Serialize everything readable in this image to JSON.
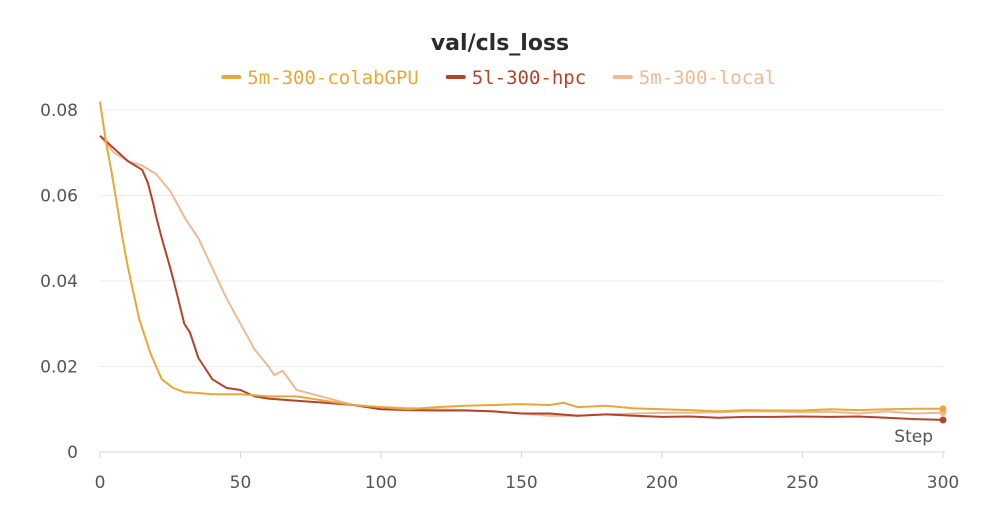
{
  "chart_data": {
    "type": "line",
    "title": "val/cls_loss",
    "xlabel": "Step",
    "ylabel": "",
    "xlim": [
      0,
      300
    ],
    "ylim": [
      0,
      0.08
    ],
    "xticks": [
      0,
      50,
      100,
      150,
      200,
      250,
      300
    ],
    "yticks": [
      0,
      0.02,
      0.04,
      0.06,
      0.08
    ],
    "ytick_labels": [
      "0",
      "0.02",
      "0.04",
      "0.06",
      "0.08"
    ],
    "grid": true,
    "legend_position": "top-center",
    "series": [
      {
        "name": "5m-300-colabGPU",
        "color": "#e8a838",
        "x": [
          0,
          2,
          4,
          6,
          8,
          10,
          12,
          14,
          16,
          18,
          20,
          22,
          24,
          26,
          28,
          30,
          35,
          40,
          45,
          50,
          60,
          70,
          80,
          90,
          100,
          110,
          120,
          130,
          140,
          150,
          160,
          165,
          170,
          180,
          190,
          200,
          210,
          220,
          230,
          240,
          250,
          260,
          270,
          280,
          290,
          300
        ],
        "y": [
          0.082,
          0.073,
          0.066,
          0.058,
          0.05,
          0.043,
          0.037,
          0.031,
          0.027,
          0.023,
          0.02,
          0.017,
          0.016,
          0.015,
          0.0145,
          0.014,
          0.0138,
          0.0135,
          0.0135,
          0.0135,
          0.013,
          0.013,
          0.012,
          0.011,
          0.0105,
          0.01,
          0.0105,
          0.0108,
          0.011,
          0.0112,
          0.011,
          0.0115,
          0.0105,
          0.0108,
          0.0102,
          0.01,
          0.0098,
          0.0095,
          0.0098,
          0.0097,
          0.0097,
          0.01,
          0.0098,
          0.01,
          0.0101,
          0.0101
        ]
      },
      {
        "name": "5l-300-hpc",
        "color": "#b5432b",
        "x": [
          0,
          5,
          10,
          15,
          17,
          19,
          20,
          22,
          25,
          27,
          30,
          32,
          35,
          37,
          40,
          45,
          50,
          55,
          60,
          70,
          80,
          90,
          100,
          110,
          120,
          130,
          140,
          150,
          160,
          170,
          180,
          190,
          200,
          210,
          220,
          230,
          240,
          250,
          260,
          270,
          280,
          290,
          300
        ],
        "y": [
          0.074,
          0.071,
          0.068,
          0.066,
          0.063,
          0.058,
          0.055,
          0.05,
          0.043,
          0.038,
          0.03,
          0.028,
          0.022,
          0.02,
          0.017,
          0.015,
          0.0145,
          0.013,
          0.0125,
          0.012,
          0.0115,
          0.011,
          0.01,
          0.0098,
          0.0097,
          0.0097,
          0.0095,
          0.009,
          0.009,
          0.0085,
          0.0088,
          0.0085,
          0.0082,
          0.0083,
          0.008,
          0.0082,
          0.0082,
          0.0083,
          0.0082,
          0.0083,
          0.008,
          0.0077,
          0.0075
        ]
      },
      {
        "name": "5m-300-local",
        "color": "#efb995",
        "x": [
          0,
          5,
          10,
          15,
          20,
          25,
          30,
          35,
          40,
          45,
          50,
          55,
          60,
          62,
          65,
          70,
          80,
          90,
          100,
          110,
          120,
          130,
          140,
          150,
          160,
          170,
          180,
          190,
          200,
          210,
          220,
          230,
          240,
          250,
          260,
          270,
          280,
          290,
          300
        ],
        "y": [
          0.074,
          0.07,
          0.068,
          0.067,
          0.065,
          0.061,
          0.055,
          0.05,
          0.043,
          0.036,
          0.03,
          0.024,
          0.02,
          0.018,
          0.019,
          0.0145,
          0.0128,
          0.011,
          0.0105,
          0.0103,
          0.01,
          0.0098,
          0.0095,
          0.009,
          0.0085,
          0.0085,
          0.0088,
          0.009,
          0.0092,
          0.0092,
          0.0093,
          0.0095,
          0.0095,
          0.0093,
          0.0094,
          0.009,
          0.0095,
          0.009,
          0.0092
        ]
      }
    ]
  }
}
